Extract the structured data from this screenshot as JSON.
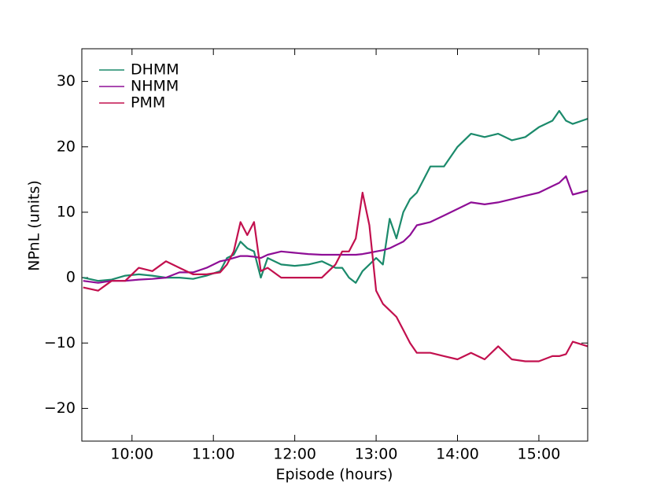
{
  "chart_data": {
    "type": "line",
    "x_label": "Episode (hours)",
    "y_label": "NPnL (units)",
    "x": [
      "09:24",
      "09:35",
      "09:45",
      "09:55",
      "10:05",
      "10:15",
      "10:25",
      "10:35",
      "10:45",
      "10:55",
      "11:05",
      "11:10",
      "11:15",
      "11:20",
      "11:25",
      "11:30",
      "11:35",
      "11:40",
      "11:50",
      "12:00",
      "12:10",
      "12:20",
      "12:30",
      "12:35",
      "12:40",
      "12:45",
      "12:50",
      "12:55",
      "13:00",
      "13:05",
      "13:10",
      "13:15",
      "13:20",
      "13:25",
      "13:30",
      "13:40",
      "13:50",
      "14:00",
      "14:10",
      "14:20",
      "14:30",
      "14:40",
      "14:50",
      "15:00",
      "15:10",
      "15:15",
      "15:20",
      "15:25",
      "15:36"
    ],
    "series": [
      {
        "name": "DHMM",
        "color": "#1b8a6b",
        "values": [
          0,
          -0.5,
          -0.3,
          0.3,
          0.5,
          0.3,
          0,
          0,
          -0.2,
          0.3,
          1,
          3,
          3.5,
          5.5,
          4.5,
          4,
          0,
          3,
          2,
          1.8,
          2,
          2.5,
          1.5,
          1.5,
          0,
          -0.8,
          1,
          2,
          3,
          2,
          9,
          6,
          10,
          12,
          13,
          17,
          17,
          20,
          22,
          21.5,
          22,
          21,
          21.5,
          23,
          24,
          25.5,
          24,
          23.5,
          24.3
        ]
      },
      {
        "name": "NHMM",
        "color": "#8e0e96",
        "values": [
          -0.5,
          -0.8,
          -0.5,
          -0.5,
          -0.3,
          -0.2,
          0,
          0.8,
          0.8,
          1.5,
          2.5,
          2.7,
          3,
          3.3,
          3.3,
          3.2,
          3,
          3.5,
          4,
          3.8,
          3.6,
          3.5,
          3.5,
          3.5,
          3.5,
          3.5,
          3.6,
          3.8,
          4,
          4.2,
          4.5,
          5,
          5.5,
          6.5,
          8,
          8.5,
          9.5,
          10.5,
          11.5,
          11.2,
          11.5,
          12,
          12.5,
          13,
          14,
          14.5,
          15.5,
          12.7,
          13.3
        ]
      },
      {
        "name": "PMM",
        "color": "#c2104e",
        "values": [
          -1.5,
          -2,
          -0.5,
          -0.5,
          1.5,
          1,
          2.5,
          1.5,
          0.5,
          0.5,
          0.8,
          2,
          4,
          8.5,
          6.5,
          8.5,
          1,
          1.5,
          0,
          0,
          0,
          0,
          2,
          4,
          4,
          6,
          13,
          8,
          -2,
          -4,
          -5,
          -6,
          -8,
          -10,
          -11.5,
          -11.5,
          -12,
          -12.5,
          -11.5,
          -12.5,
          -10.5,
          -12.5,
          -12.8,
          -12.8,
          -12,
          -12,
          -11.7,
          -9.8,
          -10.5
        ]
      }
    ],
    "xlim": [
      "09:23",
      "15:36"
    ],
    "xticks": [
      "10:00",
      "11:00",
      "12:00",
      "13:00",
      "14:00",
      "15:00"
    ],
    "ylim": [
      -25,
      35
    ],
    "yticks": [
      {
        "value": -20,
        "label": "−20"
      },
      {
        "value": -10,
        "label": "−10"
      },
      0,
      10,
      20,
      30
    ],
    "legend": "upper left",
    "grid": false
  }
}
